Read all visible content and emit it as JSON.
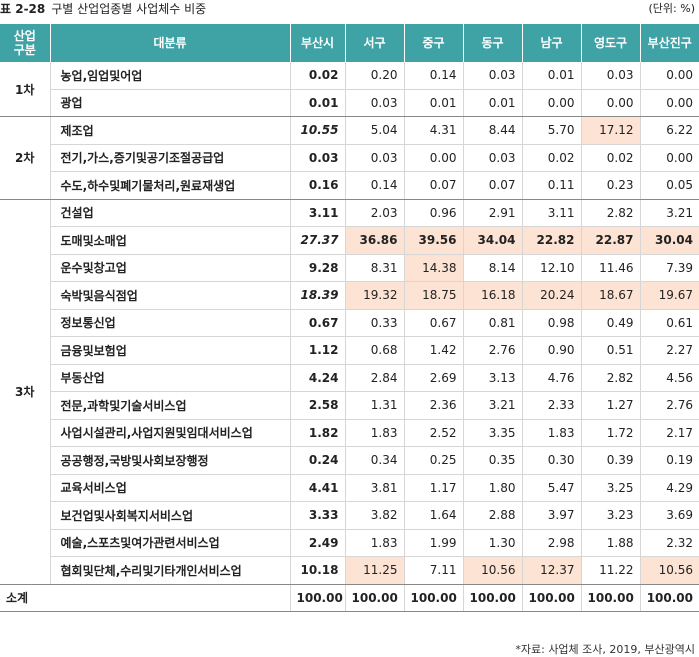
{
  "title": {
    "label": "표 2-28",
    "text": "구별 산업업종별 사업체수 비중",
    "unit": "(단위: %)"
  },
  "table": {
    "columns": [
      "산업\n구분",
      "대분류",
      "부산시",
      "서구",
      "중구",
      "동구",
      "남구",
      "영도구",
      "부산진구"
    ],
    "groups": [
      {
        "name": "1차",
        "rows": [
          {
            "label": "농업,임업및어업",
            "values": [
              "0.02",
              "0.20",
              "0.14",
              "0.03",
              "0.01",
              "0.03",
              "0.00"
            ]
          },
          {
            "label": "광업",
            "values": [
              "0.01",
              "0.03",
              "0.01",
              "0.01",
              "0.00",
              "0.00",
              "0.00"
            ]
          }
        ]
      },
      {
        "name": "2차",
        "rows": [
          {
            "label": "제조업",
            "values": [
              "10.55",
              "5.04",
              "4.31",
              "8.44",
              "5.70",
              "17.12",
              "6.22"
            ]
          },
          {
            "label": "전기,가스,증기및공기조절공급업",
            "values": [
              "0.03",
              "0.03",
              "0.00",
              "0.03",
              "0.02",
              "0.02",
              "0.00"
            ]
          },
          {
            "label": "수도,하수및폐기물처리,원료재생업",
            "values": [
              "0.16",
              "0.14",
              "0.07",
              "0.07",
              "0.11",
              "0.23",
              "0.05"
            ]
          }
        ]
      },
      {
        "name": "3차",
        "rows": [
          {
            "label": "건설업",
            "values": [
              "3.11",
              "2.03",
              "0.96",
              "2.91",
              "3.11",
              "2.82",
              "3.21"
            ]
          },
          {
            "label": "도매및소매업",
            "values": [
              "27.37",
              "36.86",
              "39.56",
              "34.04",
              "22.82",
              "22.87",
              "30.04"
            ]
          },
          {
            "label": "운수및창고업",
            "values": [
              "9.28",
              "8.31",
              "14.38",
              "8.14",
              "12.10",
              "11.46",
              "7.39"
            ]
          },
          {
            "label": "숙박및음식점업",
            "values": [
              "18.39",
              "19.32",
              "18.75",
              "16.18",
              "20.24",
              "18.67",
              "19.67"
            ]
          },
          {
            "label": "정보통신업",
            "values": [
              "0.67",
              "0.33",
              "0.67",
              "0.81",
              "0.98",
              "0.49",
              "0.61"
            ]
          },
          {
            "label": "금융및보험업",
            "values": [
              "1.12",
              "0.68",
              "1.42",
              "2.76",
              "0.90",
              "0.51",
              "2.27"
            ]
          },
          {
            "label": "부동산업",
            "values": [
              "4.24",
              "2.84",
              "2.69",
              "3.13",
              "4.76",
              "2.82",
              "4.56"
            ]
          },
          {
            "label": "전문,과학및기술서비스업",
            "values": [
              "2.58",
              "1.31",
              "2.36",
              "3.21",
              "2.33",
              "1.27",
              "2.76"
            ]
          },
          {
            "label": "사업시설관리,사업지원및임대서비스업",
            "values": [
              "1.82",
              "1.83",
              "2.52",
              "3.35",
              "1.83",
              "1.72",
              "2.17"
            ]
          },
          {
            "label": "공공행정,국방및사회보장행정",
            "values": [
              "0.24",
              "0.34",
              "0.25",
              "0.35",
              "0.30",
              "0.39",
              "0.19"
            ]
          },
          {
            "label": "교육서비스업",
            "values": [
              "4.41",
              "3.81",
              "1.17",
              "1.80",
              "5.47",
              "3.25",
              "4.29"
            ]
          },
          {
            "label": "보건업및사회복지서비스업",
            "values": [
              "3.33",
              "3.82",
              "1.64",
              "2.88",
              "3.97",
              "3.23",
              "3.69"
            ]
          },
          {
            "label": "예술,스포츠및여가관련서비스업",
            "values": [
              "2.49",
              "1.83",
              "1.99",
              "1.30",
              "2.98",
              "1.88",
              "2.32"
            ]
          },
          {
            "label": "협회및단체,수리및기타개인서비스업",
            "values": [
              "10.18",
              "11.25",
              "7.11",
              "10.56",
              "12.37",
              "11.22",
              "10.56"
            ]
          }
        ]
      }
    ],
    "total": {
      "label": "소계",
      "values": [
        "100.00",
        "100.00",
        "100.00",
        "100.00",
        "100.00",
        "100.00",
        "100.00"
      ]
    }
  },
  "source": "*자료: 사업체 조사, 2019, 부산광역시"
}
